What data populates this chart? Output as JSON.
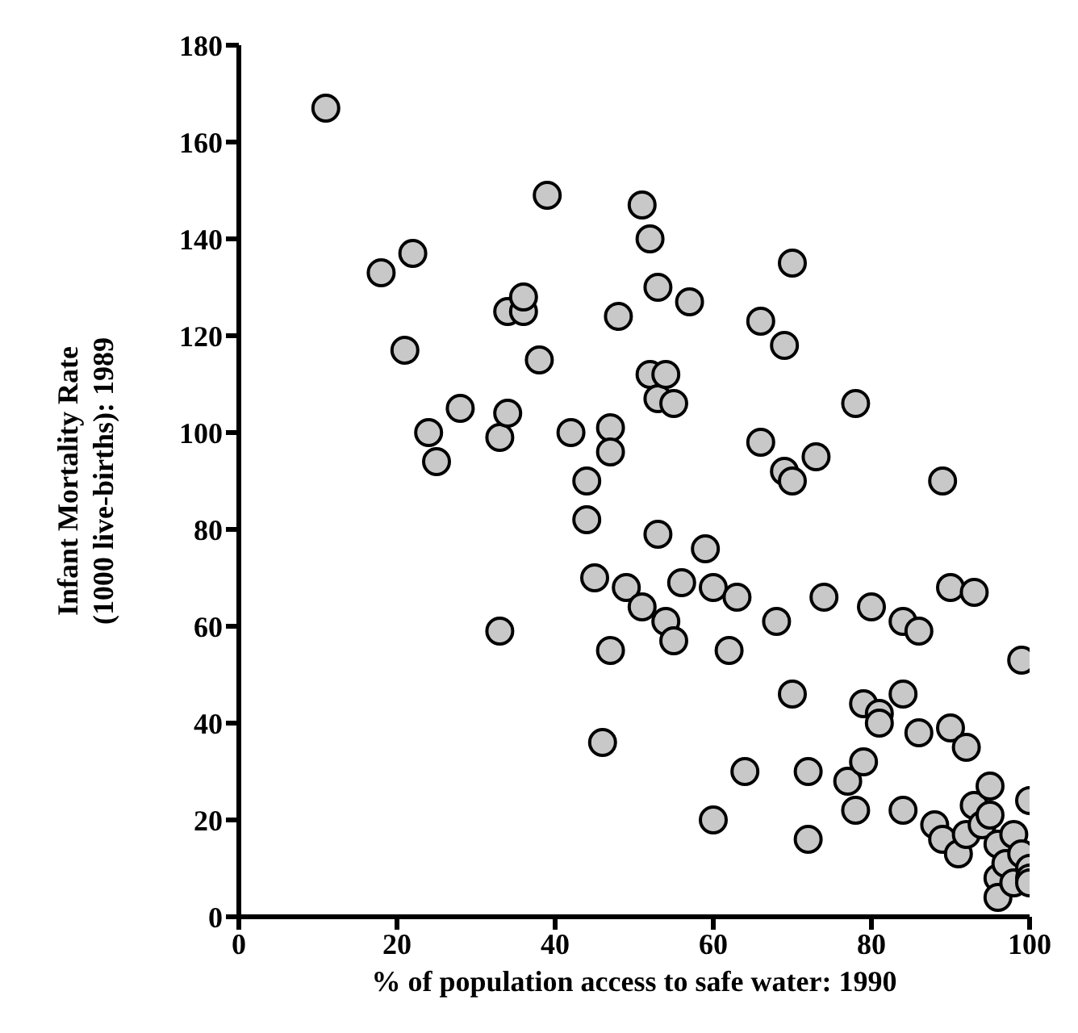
{
  "chart_data": {
    "type": "scatter",
    "xlabel": "% of population access to safe water: 1990",
    "ylabel": "Infant Mortality Rate\n(1000 live-births): 1989",
    "xlim": [
      0,
      100
    ],
    "xticks": [
      0,
      20,
      40,
      60,
      80,
      100
    ],
    "ylim": [
      0,
      180
    ],
    "yticks": [
      0,
      20,
      40,
      60,
      80,
      100,
      120,
      140,
      160,
      180
    ],
    "grid": false,
    "marker": "circle",
    "series": [
      {
        "color": "#c8c8c8",
        "x": [
          11,
          18,
          21,
          22,
          24,
          25,
          28,
          33,
          33,
          34,
          34,
          36,
          36,
          38,
          39,
          42,
          44,
          44,
          45,
          46,
          47,
          47,
          47,
          48,
          49,
          51,
          51,
          52,
          52,
          53,
          53,
          53,
          54,
          54,
          55,
          55,
          56,
          57,
          59,
          60,
          60,
          62,
          63,
          64,
          66,
          66,
          68,
          69,
          69,
          70,
          70,
          70,
          72,
          72,
          73,
          74,
          77,
          78,
          78,
          79,
          79,
          80,
          81,
          81,
          84,
          84,
          84,
          86,
          86,
          88,
          89,
          89,
          90,
          90,
          91,
          92,
          92,
          93,
          93,
          94,
          95,
          95,
          96,
          96,
          96,
          97,
          98,
          98,
          99,
          99,
          100,
          100,
          100,
          100
        ],
        "values": [
          167,
          133,
          117,
          137,
          100,
          94,
          105,
          99,
          59,
          125,
          104,
          125,
          128,
          115,
          149,
          100,
          90,
          82,
          70,
          36,
          101,
          96,
          55,
          124,
          68,
          147,
          64,
          140,
          112,
          130,
          107,
          79,
          112,
          61,
          106,
          57,
          69,
          127,
          76,
          68,
          20,
          55,
          66,
          30,
          123,
          98,
          61,
          118,
          92,
          135,
          90,
          46,
          30,
          16,
          95,
          66,
          28,
          106,
          22,
          44,
          32,
          64,
          42,
          40,
          61,
          46,
          22,
          59,
          38,
          19,
          90,
          16,
          68,
          39,
          13,
          35,
          17,
          67,
          23,
          19,
          27,
          21,
          15,
          8,
          4,
          11,
          17,
          7,
          53,
          13,
          24,
          10,
          8,
          7
        ]
      }
    ]
  }
}
